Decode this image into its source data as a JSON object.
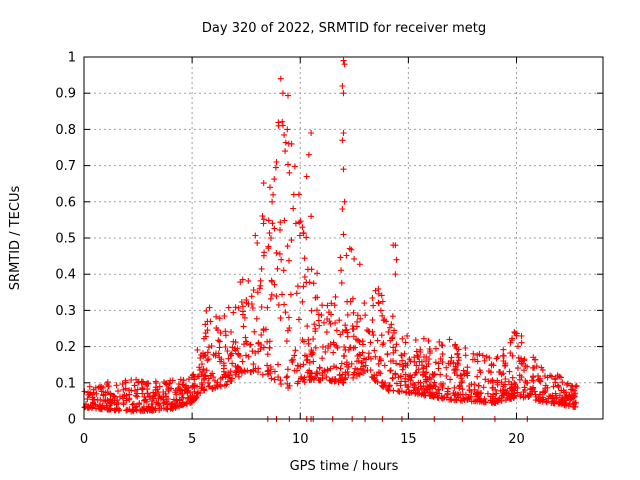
{
  "chart_data": {
    "type": "scatter",
    "title": "Day 320 of 2022, SRMTID for receiver metg",
    "xlabel": "GPS time / hours",
    "ylabel": "SRMTID / TECUs",
    "xlim": [
      0,
      24
    ],
    "ylim": [
      0,
      1
    ],
    "xticks": [
      0,
      5,
      10,
      15,
      20
    ],
    "yticks": [
      0,
      0.1,
      0.2,
      0.3,
      0.4,
      0.5,
      0.6,
      0.7,
      0.8,
      0.9,
      1
    ],
    "xtick_labels": [
      "0",
      "5",
      "10",
      "15",
      "20"
    ],
    "ytick_labels": [
      "0",
      "0.1",
      "0.2",
      "0.3",
      "0.4",
      "0.5",
      "0.6",
      "0.7",
      "0.8",
      "0.9",
      "1"
    ],
    "grid": true,
    "marker": "+",
    "series": [
      {
        "name": "SRMTID",
        "color": "#ff0000",
        "envelope": [
          {
            "x": 0.0,
            "base": 0.05,
            "spread": 0.03
          },
          {
            "x": 2.0,
            "base": 0.05,
            "spread": 0.05
          },
          {
            "x": 4.0,
            "base": 0.05,
            "spread": 0.04
          },
          {
            "x": 5.0,
            "base": 0.07,
            "spread": 0.04
          },
          {
            "x": 5.5,
            "base": 0.15,
            "spread": 0.12
          },
          {
            "x": 6.5,
            "base": 0.15,
            "spread": 0.1
          },
          {
            "x": 7.5,
            "base": 0.22,
            "spread": 0.15
          },
          {
            "x": 8.5,
            "base": 0.3,
            "spread": 0.3
          },
          {
            "x": 9.3,
            "base": 0.35,
            "spread": 0.45
          },
          {
            "x": 10.0,
            "base": 0.25,
            "spread": 0.25
          },
          {
            "x": 11.0,
            "base": 0.18,
            "spread": 0.12
          },
          {
            "x": 12.0,
            "base": 0.22,
            "spread": 0.2
          },
          {
            "x": 13.0,
            "base": 0.22,
            "spread": 0.15
          },
          {
            "x": 14.0,
            "base": 0.15,
            "spread": 0.12
          },
          {
            "x": 15.0,
            "base": 0.12,
            "spread": 0.08
          },
          {
            "x": 17.0,
            "base": 0.1,
            "spread": 0.08
          },
          {
            "x": 19.0,
            "base": 0.08,
            "spread": 0.06
          },
          {
            "x": 20.0,
            "base": 0.12,
            "spread": 0.1
          },
          {
            "x": 21.0,
            "base": 0.08,
            "spread": 0.05
          },
          {
            "x": 22.8,
            "base": 0.05,
            "spread": 0.03
          }
        ],
        "spikes": [
          {
            "x": 9.1,
            "y": 0.94
          },
          {
            "x": 9.2,
            "y": 0.9
          },
          {
            "x": 9.0,
            "y": 0.81
          },
          {
            "x": 9.4,
            "y": 0.8
          },
          {
            "x": 9.6,
            "y": 0.76
          },
          {
            "x": 9.3,
            "y": 0.74
          },
          {
            "x": 8.9,
            "y": 0.71
          },
          {
            "x": 9.5,
            "y": 0.68
          },
          {
            "x": 8.6,
            "y": 0.64
          },
          {
            "x": 10.5,
            "y": 0.79
          },
          {
            "x": 10.4,
            "y": 0.73
          },
          {
            "x": 10.3,
            "y": 0.67
          },
          {
            "x": 10.5,
            "y": 0.56
          },
          {
            "x": 12.0,
            "y": 0.99
          },
          {
            "x": 12.05,
            "y": 0.98
          },
          {
            "x": 11.95,
            "y": 0.92
          },
          {
            "x": 12.0,
            "y": 0.9
          },
          {
            "x": 12.0,
            "y": 0.79
          },
          {
            "x": 11.95,
            "y": 0.77
          },
          {
            "x": 12.0,
            "y": 0.69
          },
          {
            "x": 12.05,
            "y": 0.6
          },
          {
            "x": 11.95,
            "y": 0.58
          },
          {
            "x": 12.0,
            "y": 0.51
          },
          {
            "x": 14.3,
            "y": 0.48
          },
          {
            "x": 14.4,
            "y": 0.48
          },
          {
            "x": 14.45,
            "y": 0.44
          },
          {
            "x": 14.4,
            "y": 0.4
          },
          {
            "x": 8.3,
            "y": 0.54
          },
          {
            "x": 8.7,
            "y": 0.6
          },
          {
            "x": 9.7,
            "y": 0.62
          },
          {
            "x": 9.8,
            "y": 0.54
          },
          {
            "x": 19.9,
            "y": 0.24
          },
          {
            "x": 20.0,
            "y": 0.23
          },
          {
            "x": 16.9,
            "y": 0.22
          },
          {
            "x": 18.0,
            "y": 0.18
          }
        ],
        "zero_points": [
          8.5,
          8.9,
          9.5,
          10.3,
          10.5,
          10.6,
          11.5,
          12.4,
          13.0,
          13.8,
          14.7,
          16.2,
          17.5,
          19.0,
          20.5
        ]
      }
    ]
  }
}
